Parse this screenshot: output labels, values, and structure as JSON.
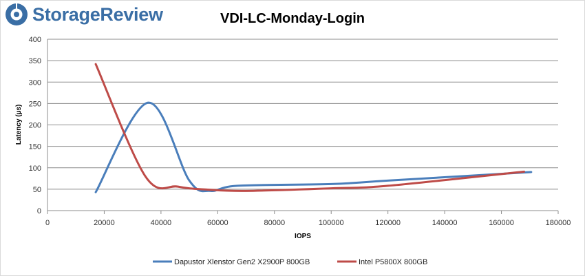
{
  "logo": {
    "text": "StorageReview"
  },
  "chart_data": {
    "type": "line",
    "title": "VDI-LC-Monday-Login",
    "xlabel": "IOPS",
    "ylabel": "Latency (µs)",
    "xlim": [
      0,
      180000
    ],
    "ylim": [
      0,
      400
    ],
    "x_ticks": [
      0,
      20000,
      40000,
      60000,
      80000,
      100000,
      120000,
      140000,
      160000,
      180000
    ],
    "y_ticks": [
      0,
      50,
      100,
      150,
      200,
      250,
      300,
      350,
      400
    ],
    "grid": "horizontal",
    "legend_position": "bottom",
    "series": [
      {
        "name": "Dapustor Xlenstor Gen2 X2900P 800GB",
        "color": "#4a7ebb",
        "points": [
          [
            17000,
            43
          ],
          [
            35500,
            252
          ],
          [
            50000,
            70
          ],
          [
            57500,
            46
          ],
          [
            67000,
            58
          ],
          [
            100000,
            62
          ],
          [
            120000,
            70
          ],
          [
            170500,
            90
          ]
        ]
      },
      {
        "name": "Intel P5800X 800GB",
        "color": "#be4b48",
        "points": [
          [
            17000,
            342
          ],
          [
            34500,
            80
          ],
          [
            46000,
            56
          ],
          [
            56500,
            49
          ],
          [
            70000,
            46
          ],
          [
            100000,
            52
          ],
          [
            120000,
            58
          ],
          [
            168000,
            91
          ]
        ]
      }
    ]
  }
}
